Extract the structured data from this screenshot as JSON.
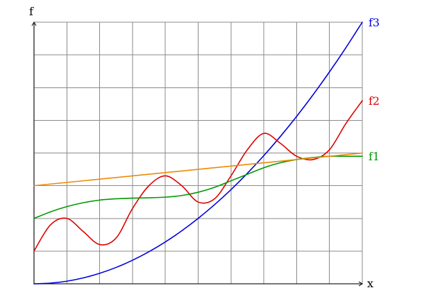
{
  "chart_data": {
    "type": "line",
    "xlabel": "x",
    "ylabel": "f",
    "xlim": [
      0,
      10
    ],
    "ylim": [
      0,
      8
    ],
    "grid": true,
    "legend": "none",
    "series": [
      {
        "name": "f3",
        "color": "#0000dd",
        "x": [
          0,
          0.5,
          1,
          1.5,
          2,
          2.5,
          3,
          3.5,
          4,
          4.5,
          5,
          5.5,
          6,
          6.5,
          7,
          7.5,
          8,
          8.5,
          9,
          9.5,
          10
        ],
        "y": [
          0,
          0.02,
          0.08,
          0.18,
          0.32,
          0.5,
          0.72,
          0.98,
          1.28,
          1.62,
          2.0,
          2.42,
          2.88,
          3.38,
          3.92,
          4.5,
          5.12,
          5.78,
          6.48,
          7.22,
          8.0
        ]
      },
      {
        "name": "f2",
        "color": "#dd0000",
        "x": [
          0,
          0.5,
          1,
          1.5,
          2,
          2.5,
          3,
          3.5,
          4,
          4.5,
          5,
          5.5,
          6,
          6.5,
          7,
          7.5,
          8,
          8.5,
          9,
          9.5,
          10
        ],
        "y": [
          1.0,
          1.8,
          2.0,
          1.6,
          1.2,
          1.4,
          2.3,
          3.0,
          3.3,
          3.0,
          2.5,
          2.6,
          3.3,
          4.1,
          4.6,
          4.3,
          3.9,
          3.8,
          4.1,
          4.9,
          5.6
        ]
      },
      {
        "name": "f1",
        "color": "#009900",
        "x": [
          0,
          0.5,
          1,
          1.5,
          2,
          2.5,
          3,
          3.5,
          4,
          4.5,
          5,
          5.5,
          6,
          6.5,
          7,
          7.5,
          8,
          8.5,
          9,
          9.5,
          10
        ],
        "y": [
          2.0,
          2.2,
          2.36,
          2.48,
          2.56,
          2.6,
          2.62,
          2.63,
          2.65,
          2.7,
          2.8,
          2.95,
          3.15,
          3.35,
          3.55,
          3.7,
          3.8,
          3.86,
          3.9,
          3.9,
          3.9
        ]
      },
      {
        "name": "",
        "color": "#ee8800",
        "x": [
          0,
          10
        ],
        "y": [
          3.0,
          4.0
        ]
      }
    ]
  }
}
